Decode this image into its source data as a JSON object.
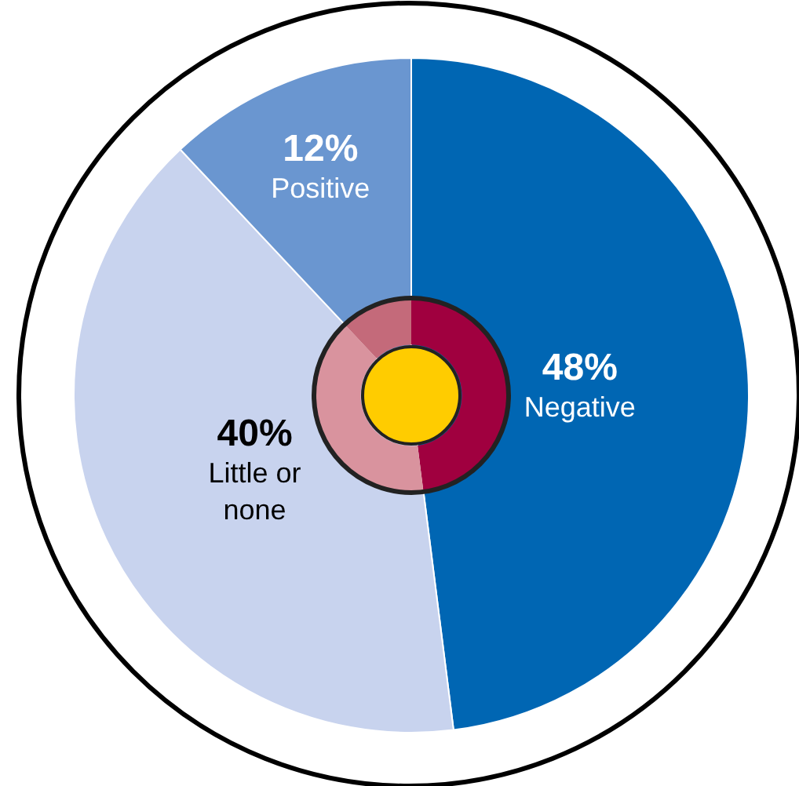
{
  "chart_data": {
    "type": "pie",
    "categories": [
      "Negative",
      "Little or none",
      "Positive"
    ],
    "series": [
      {
        "values": [
          48,
          40,
          12
        ],
        "colors": [
          "#0066b3",
          "#c8d3ee",
          "#6a96d0"
        ],
        "value_labels": [
          "48%",
          "40%",
          "12%"
        ]
      },
      {
        "values": [
          48,
          40,
          12
        ],
        "colors": [
          "#a0003f",
          "#d9939e",
          "#c46a7a"
        ]
      }
    ],
    "legend": false
  }
}
